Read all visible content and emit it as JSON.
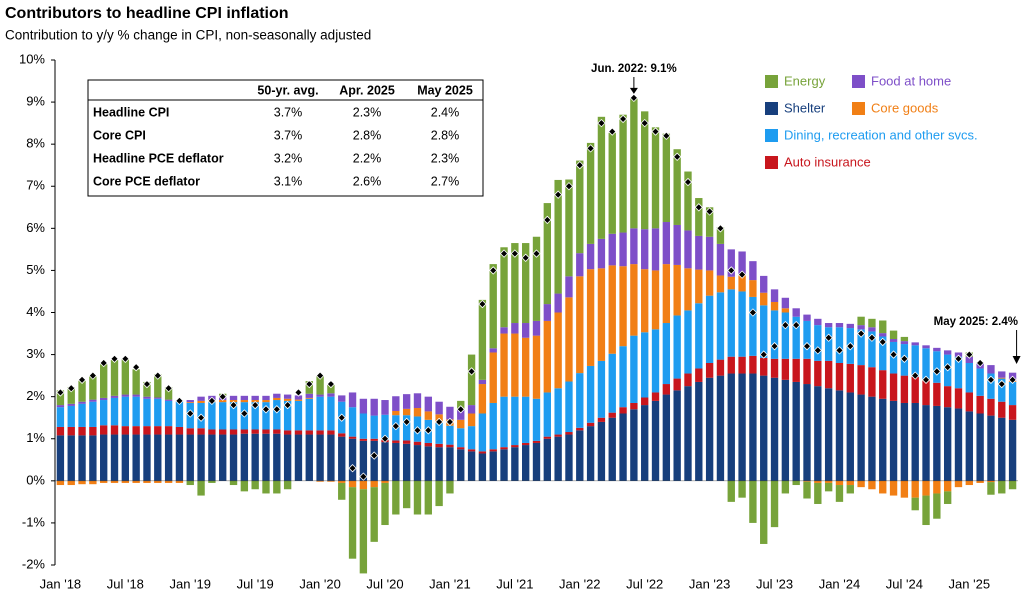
{
  "chart_data": {
    "type": "stacked-bar",
    "title": "Contributors to headline CPI inflation",
    "subtitle": "Contribution to y/y % change in CPI, non-seasonally adjusted",
    "categories": [
      "Jan '18",
      null,
      null,
      null,
      null,
      null,
      "Jul '18",
      null,
      null,
      null,
      null,
      null,
      "Jan '19",
      null,
      null,
      null,
      null,
      null,
      "Jul '19",
      null,
      null,
      null,
      null,
      null,
      "Jan '20",
      null,
      null,
      null,
      null,
      null,
      "Jul '20",
      null,
      null,
      null,
      null,
      null,
      "Jan '21",
      null,
      null,
      null,
      null,
      null,
      "Jul '21",
      null,
      null,
      null,
      null,
      null,
      "Jan '22",
      null,
      null,
      null,
      null,
      null,
      "Jul '22",
      null,
      null,
      null,
      null,
      null,
      "Jan '23",
      null,
      null,
      null,
      null,
      null,
      "Jul '23",
      null,
      null,
      null,
      null,
      null,
      "Jan '24",
      null,
      null,
      null,
      null,
      null,
      "Jul '24",
      null,
      null,
      null,
      null,
      null,
      "Jan '25",
      null,
      null,
      null,
      null
    ],
    "series": [
      {
        "name": "Shelter",
        "color": "#173f7d",
        "values": [
          1.08,
          1.08,
          1.08,
          1.08,
          1.1,
          1.1,
          1.1,
          1.1,
          1.1,
          1.1,
          1.1,
          1.1,
          1.1,
          1.1,
          1.1,
          1.1,
          1.1,
          1.12,
          1.12,
          1.12,
          1.12,
          1.1,
          1.1,
          1.1,
          1.1,
          1.1,
          1.05,
          1.0,
          0.95,
          0.95,
          0.92,
          0.9,
          0.88,
          0.85,
          0.82,
          0.8,
          0.8,
          0.75,
          0.7,
          0.65,
          0.7,
          0.75,
          0.8,
          0.85,
          0.9,
          1.0,
          1.05,
          1.1,
          1.2,
          1.3,
          1.4,
          1.5,
          1.6,
          1.7,
          1.8,
          1.9,
          2.05,
          2.15,
          2.25,
          2.35,
          2.45,
          2.5,
          2.55,
          2.55,
          2.55,
          2.5,
          2.45,
          2.4,
          2.35,
          2.3,
          2.25,
          2.2,
          2.15,
          2.1,
          2.05,
          2.0,
          1.95,
          1.9,
          1.85,
          1.85,
          1.8,
          1.78,
          1.75,
          1.72,
          1.65,
          1.6,
          1.55,
          1.5,
          1.45
        ]
      },
      {
        "name": "Auto insurance",
        "color": "#c8161d",
        "values": [
          0.2,
          0.2,
          0.2,
          0.2,
          0.22,
          0.22,
          0.2,
          0.2,
          0.2,
          0.2,
          0.2,
          0.18,
          0.15,
          0.15,
          0.12,
          0.12,
          0.12,
          0.1,
          0.1,
          0.1,
          0.1,
          0.1,
          0.1,
          0.1,
          0.1,
          0.1,
          0.08,
          0.05,
          0.05,
          0.05,
          0.05,
          0.06,
          0.08,
          0.08,
          0.08,
          0.08,
          0.06,
          0.05,
          0.05,
          0.05,
          0.05,
          0.05,
          0.05,
          0.05,
          0.05,
          0.05,
          0.05,
          0.06,
          0.06,
          0.08,
          0.1,
          0.12,
          0.15,
          0.15,
          0.18,
          0.2,
          0.25,
          0.28,
          0.3,
          0.32,
          0.35,
          0.38,
          0.4,
          0.4,
          0.42,
          0.42,
          0.45,
          0.5,
          0.55,
          0.6,
          0.6,
          0.65,
          0.65,
          0.68,
          0.7,
          0.7,
          0.68,
          0.65,
          0.65,
          0.62,
          0.6,
          0.55,
          0.5,
          0.48,
          0.45,
          0.42,
          0.4,
          0.38,
          0.35
        ]
      },
      {
        "name": "Dining, recreation and other svcs.",
        "color": "#1e9cf0",
        "values": [
          0.47,
          0.5,
          0.55,
          0.6,
          0.6,
          0.65,
          0.7,
          0.7,
          0.65,
          0.65,
          0.6,
          0.6,
          0.6,
          0.6,
          0.65,
          0.65,
          0.65,
          0.65,
          0.65,
          0.65,
          0.7,
          0.7,
          0.7,
          0.75,
          0.8,
          0.8,
          0.75,
          0.7,
          0.6,
          0.55,
          0.6,
          0.6,
          0.6,
          0.6,
          0.55,
          0.5,
          0.45,
          0.45,
          0.55,
          0.9,
          1.1,
          1.2,
          1.15,
          1.1,
          1.0,
          1.05,
          1.1,
          1.2,
          1.3,
          1.35,
          1.35,
          1.4,
          1.45,
          1.6,
          1.55,
          1.5,
          1.45,
          1.5,
          1.5,
          1.55,
          1.6,
          1.6,
          1.6,
          1.55,
          1.4,
          1.25,
          1.15,
          1.1,
          1.0,
          0.9,
          0.85,
          0.8,
          0.85,
          0.85,
          0.85,
          0.85,
          0.8,
          0.75,
          0.75,
          0.75,
          0.75,
          0.75,
          0.75,
          0.75,
          0.7,
          0.65,
          0.6,
          0.55,
          0.55
        ]
      },
      {
        "name": "Core goods",
        "color": "#f17f15",
        "values": [
          -0.1,
          -0.1,
          -0.08,
          -0.08,
          -0.05,
          -0.05,
          -0.05,
          -0.05,
          -0.05,
          -0.05,
          -0.05,
          -0.05,
          0.02,
          0.05,
          0.05,
          0.05,
          0.05,
          0.05,
          0.05,
          0.05,
          0.05,
          0.05,
          0.03,
          0.02,
          -0.02,
          -0.02,
          -0.05,
          -0.15,
          -0.2,
          -0.15,
          -0.05,
          0.1,
          0.15,
          0.2,
          0.2,
          0.2,
          0.15,
          0.2,
          0.3,
          0.7,
          1.2,
          1.5,
          1.5,
          1.4,
          1.5,
          1.7,
          1.8,
          2.0,
          2.3,
          2.3,
          2.2,
          2.1,
          1.9,
          1.7,
          1.5,
          1.4,
          1.4,
          1.2,
          1.0,
          0.8,
          0.6,
          0.4,
          0.3,
          0.4,
          0.4,
          0.3,
          0.2,
          0.1,
          0.0,
          -0.02,
          -0.05,
          -0.05,
          -0.1,
          -0.1,
          -0.15,
          -0.2,
          -0.3,
          -0.35,
          -0.4,
          -0.4,
          -0.35,
          -0.3,
          -0.25,
          -0.15,
          -0.1,
          -0.05,
          -0.03,
          0.02,
          0.02
        ]
      },
      {
        "name": "Food  at home",
        "color": "#7e4fc8",
        "values": [
          0.05,
          0.05,
          0.05,
          0.05,
          0.05,
          0.05,
          0.05,
          0.05,
          0.05,
          0.03,
          0.03,
          0.03,
          0.05,
          0.1,
          0.1,
          0.1,
          0.1,
          0.1,
          0.1,
          0.1,
          0.1,
          0.1,
          0.1,
          0.1,
          0.05,
          0.08,
          0.15,
          0.35,
          0.35,
          0.4,
          0.35,
          0.35,
          0.35,
          0.35,
          0.35,
          0.3,
          0.3,
          0.25,
          0.2,
          0.1,
          0.1,
          0.15,
          0.25,
          0.35,
          0.35,
          0.4,
          0.45,
          0.5,
          0.55,
          0.6,
          0.7,
          0.75,
          0.8,
          0.85,
          0.95,
          1.0,
          1.0,
          0.95,
          0.9,
          0.8,
          0.8,
          0.75,
          0.65,
          0.55,
          0.45,
          0.4,
          0.3,
          0.25,
          0.2,
          0.15,
          0.15,
          0.1,
          0.1,
          0.1,
          0.1,
          0.1,
          0.08,
          0.07,
          0.07,
          0.07,
          0.07,
          0.08,
          0.1,
          0.1,
          0.15,
          0.15,
          0.2,
          0.15,
          0.2
        ]
      },
      {
        "name": "Energy",
        "color": "#77a33a",
        "values": [
          0.35,
          0.4,
          0.5,
          0.55,
          0.8,
          0.85,
          0.85,
          0.6,
          0.35,
          0.55,
          0.3,
          0.0,
          -0.1,
          -0.35,
          -0.05,
          0.05,
          -0.1,
          -0.25,
          -0.2,
          -0.3,
          -0.3,
          -0.2,
          0.0,
          0.3,
          0.45,
          0.2,
          -0.4,
          -1.7,
          -2.0,
          -1.3,
          -1.0,
          -0.8,
          -0.65,
          -0.8,
          -0.8,
          -0.6,
          -0.3,
          0.2,
          1.2,
          1.9,
          2.0,
          1.9,
          1.9,
          1.9,
          2.0,
          2.4,
          2.7,
          2.3,
          2.2,
          2.4,
          2.9,
          2.4,
          2.8,
          3.1,
          2.8,
          2.4,
          2.1,
          1.8,
          1.4,
          0.9,
          0.7,
          0.4,
          -0.5,
          -0.4,
          -1.0,
          -1.5,
          -1.1,
          -0.3,
          -0.1,
          -0.4,
          -0.5,
          -0.2,
          -0.4,
          -0.2,
          0.2,
          0.2,
          0.3,
          0.2,
          0.1,
          -0.3,
          -0.7,
          -0.6,
          -0.3,
          0.0,
          0.1,
          0.0,
          -0.3,
          -0.3,
          -0.2
        ]
      }
    ],
    "markers": [
      2.1,
      2.2,
      2.4,
      2.5,
      2.8,
      2.9,
      2.9,
      2.7,
      2.3,
      2.5,
      2.2,
      1.9,
      1.6,
      1.5,
      1.9,
      2.0,
      1.8,
      1.6,
      1.8,
      1.7,
      1.7,
      1.8,
      2.1,
      2.3,
      2.5,
      2.3,
      1.5,
      0.3,
      0.1,
      0.6,
      1.0,
      1.3,
      1.4,
      1.2,
      1.2,
      1.4,
      1.4,
      1.7,
      2.6,
      4.2,
      5.0,
      5.4,
      5.4,
      5.3,
      5.4,
      6.2,
      6.8,
      7.0,
      7.5,
      7.9,
      8.5,
      8.3,
      8.6,
      9.1,
      8.5,
      8.3,
      8.2,
      7.7,
      7.1,
      6.5,
      6.4,
      6.0,
      5.0,
      4.9,
      4.0,
      3.0,
      3.2,
      3.7,
      3.7,
      3.2,
      3.1,
      3.4,
      3.1,
      3.2,
      3.5,
      3.4,
      3.3,
      3.0,
      2.9,
      2.5,
      2.4,
      2.6,
      2.7,
      2.9,
      3.0,
      2.8,
      2.4,
      2.3,
      2.4
    ],
    "ylim": [
      -2,
      10
    ],
    "yticks": [
      {
        "value": -2,
        "label": "-2%"
      },
      {
        "value": -1,
        "label": "-1%"
      },
      {
        "value": 0,
        "label": "0%"
      },
      {
        "value": 1,
        "label": "1%"
      },
      {
        "value": 2,
        "label": "2%"
      },
      {
        "value": 3,
        "label": "3%"
      },
      {
        "value": 4,
        "label": "4%"
      },
      {
        "value": 5,
        "label": "5%"
      },
      {
        "value": 6,
        "label": "6%"
      },
      {
        "value": 7,
        "label": "7%"
      },
      {
        "value": 8,
        "label": "8%"
      },
      {
        "value": 9,
        "label": "9%"
      },
      {
        "value": 10,
        "label": "10%"
      }
    ],
    "annotations": [
      "Jun. 2022: 9.1%",
      "May 2025: 2.4%"
    ],
    "legend": "top-right"
  },
  "table": {
    "header": [
      "50-yr. avg.",
      "Apr. 2025",
      "May 2025"
    ],
    "rows": [
      [
        "Headline CPI",
        "3.7%",
        "2.3%",
        "2.4%"
      ],
      [
        "Core CPI",
        "3.7%",
        "2.8%",
        "2.8%"
      ],
      [
        "Headline PCE deflator",
        "3.2%",
        "2.2%",
        "2.3%"
      ],
      [
        "Core PCE deflator",
        "3.1%",
        "2.6%",
        "2.7%"
      ]
    ]
  }
}
